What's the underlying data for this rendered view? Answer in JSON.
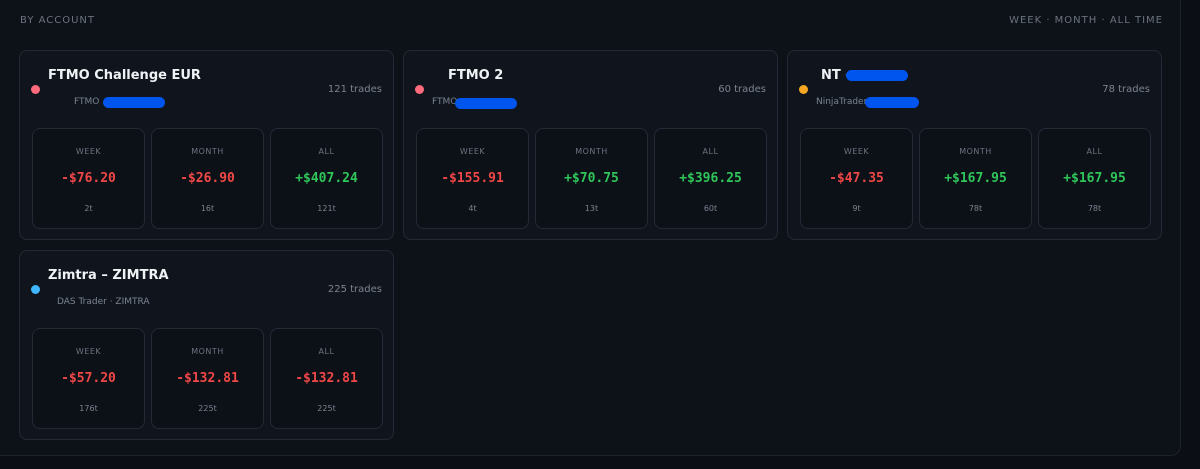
{
  "header": {
    "title": "BY ACCOUNT",
    "range": "WEEK · MONTH · ALL TIME"
  },
  "accounts": [
    {
      "name": "FTMO Challenge EUR",
      "sub": "FTMO",
      "trades": "121 trades",
      "dot_color": "#ff6b7a",
      "stats": [
        {
          "label": "WEEK",
          "value": "-$76.20",
          "count": "2t",
          "sign": "neg"
        },
        {
          "label": "MONTH",
          "value": "-$26.90",
          "count": "16t",
          "sign": "neg"
        },
        {
          "label": "ALL",
          "value": "+$407.24",
          "count": "121t",
          "sign": "pos"
        }
      ]
    },
    {
      "name": "FTMO 2",
      "sub": "FTMO",
      "trades": "60 trades",
      "dot_color": "#ff6b7a",
      "stats": [
        {
          "label": "WEEK",
          "value": "-$155.91",
          "count": "4t",
          "sign": "neg"
        },
        {
          "label": "MONTH",
          "value": "+$70.75",
          "count": "13t",
          "sign": "pos"
        },
        {
          "label": "ALL",
          "value": "+$396.25",
          "count": "60t",
          "sign": "pos"
        }
      ]
    },
    {
      "name": "NT –",
      "sub": "NinjaTrader",
      "trades": "78 trades",
      "dot_color": "#f5a623",
      "stats": [
        {
          "label": "WEEK",
          "value": "-$47.35",
          "count": "9t",
          "sign": "neg"
        },
        {
          "label": "MONTH",
          "value": "+$167.95",
          "count": "78t",
          "sign": "pos"
        },
        {
          "label": "ALL",
          "value": "+$167.95",
          "count": "78t",
          "sign": "pos"
        }
      ]
    },
    {
      "name": "Zimtra – ZIMTRA",
      "sub": "DAS Trader · ZIMTRA",
      "trades": "225 trades",
      "dot_color": "#3fb6ff",
      "stats": [
        {
          "label": "WEEK",
          "value": "-$57.20",
          "count": "176t",
          "sign": "neg"
        },
        {
          "label": "MONTH",
          "value": "-$132.81",
          "count": "225t",
          "sign": "neg"
        },
        {
          "label": "ALL",
          "value": "-$132.81",
          "count": "225t",
          "sign": "neg"
        }
      ]
    }
  ]
}
